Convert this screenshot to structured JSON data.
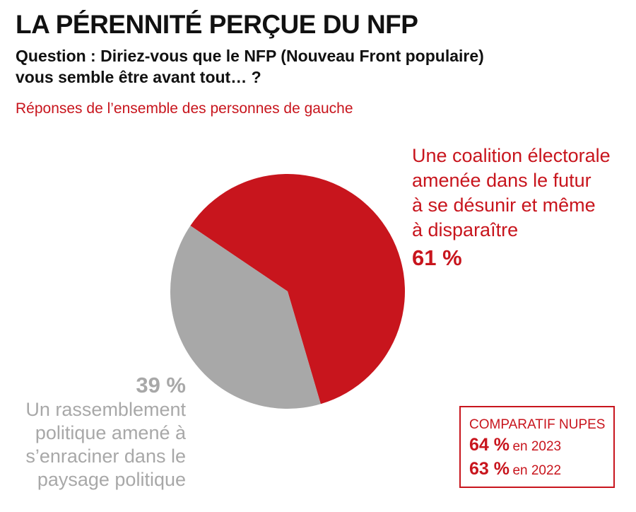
{
  "header": {
    "title": "LA PÉRENNITÉ PERÇUE DU NFP",
    "question_line1": "Question : Diriez-vous que le NFP (Nouveau Front populaire)",
    "question_line2": "vous semble être avant tout… ?",
    "subtitle": "Réponses de l’ensemble des personnes de gauche"
  },
  "chart_data": {
    "type": "pie",
    "title": "LA PÉRENNITÉ PERÇUE DU NFP",
    "slices": [
      {
        "label_lines": [
          "Une coalition électorale",
          "amenée dans le futur",
          "à se désunir et même",
          "à disparaître"
        ],
        "value": 61,
        "value_label": "61 %",
        "color": "#c8151d"
      },
      {
        "label_lines": [
          "Un rassemblement",
          "politique amené à",
          "s’enraciner dans le",
          "paysage politique"
        ],
        "value": 39,
        "value_label": "39 %",
        "color": "#a8a8a8"
      }
    ]
  },
  "comparison": {
    "title": "COMPARATIF NUPES",
    "rows": [
      {
        "pct": "64 %",
        "year": "en 2023"
      },
      {
        "pct": "63 %",
        "year": "en 2022"
      }
    ]
  }
}
